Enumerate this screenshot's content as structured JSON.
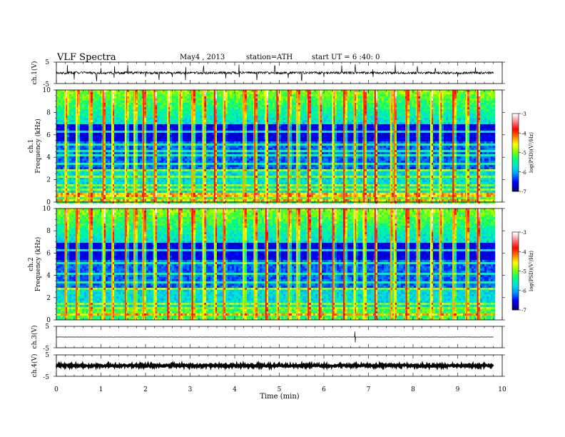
{
  "header": {
    "title": "VLF Spectra",
    "date": "May4 , 2013",
    "station": "station=ATH",
    "start": "start UT = 6 :40: 0"
  },
  "colors": {
    "spectrogram_scale": [
      "#000000",
      "#000033",
      "#00008b",
      "#0000ff",
      "#0090ff",
      "#00e0e0",
      "#00ff80",
      "#80ff00",
      "#ffff00",
      "#ff8000",
      "#ff0000",
      "#ff8080",
      "#ffffff"
    ],
    "trace": "#000000",
    "background": "#ffffff"
  },
  "chart_data": [
    {
      "type": "line",
      "panel": "ch1",
      "ylabel": "ch.1(V)",
      "ylim": [
        -5,
        5
      ],
      "ytick_labels": [
        "5",
        "-5"
      ],
      "xlim": [
        0,
        10
      ],
      "trace_extent_min": 9.8,
      "baseline": 0,
      "noise_amplitude": 0.6,
      "spike_times": [
        0.25,
        0.4,
        0.9,
        1.0,
        1.3,
        1.6,
        2.0,
        2.3,
        2.6,
        2.9,
        3.3,
        3.8,
        4.1,
        4.5,
        4.9,
        5.2,
        5.5,
        6.0,
        6.4,
        6.7,
        7.1,
        7.6,
        8.1,
        8.5,
        9.0,
        9.4
      ]
    },
    {
      "type": "heatmap",
      "panel": "ch2_spectrogram_1",
      "ylabel": "ch.1 Frequency (kHz)",
      "ylabel_lines": [
        "ch.1",
        "Frequency (kHz)"
      ],
      "ylim": [
        0,
        10
      ],
      "ytick_labels": [
        "0",
        "2",
        "4",
        "6",
        "8",
        "10"
      ],
      "xlim": [
        0,
        10
      ],
      "data_extent_min": 9.8,
      "colorbar": {
        "label": "log(PSD)(V²/Hz)",
        "range": [
          -7,
          -3
        ],
        "tick_labels": [
          "-7",
          "-6",
          "-5",
          "-4",
          "-3"
        ]
      },
      "bright_lines_khz": [
        0.3,
        0.6,
        0.85,
        1.2,
        1.6,
        2.4,
        2.9,
        3.5,
        4.2,
        4.7,
        5.2,
        6.3
      ],
      "burst_times_min": [
        0.2,
        0.45,
        0.75,
        1.05,
        1.25,
        1.55,
        1.75,
        1.95,
        2.2,
        2.5,
        2.75,
        3.05,
        3.3,
        3.55,
        3.75,
        4.2,
        4.45,
        4.7,
        4.95,
        5.2,
        5.4,
        5.65,
        5.9,
        6.2,
        6.45,
        6.68,
        6.9,
        7.15,
        7.5,
        7.58,
        7.85,
        8.1,
        8.4,
        8.6,
        8.9,
        9.2,
        9.45
      ]
    },
    {
      "type": "heatmap",
      "panel": "ch2_spectrogram_2",
      "ylabel": "ch.2 Frequency (kHz)",
      "ylabel_lines": [
        "ch.2",
        "Frequency (kHz)"
      ],
      "ylim": [
        0,
        10
      ],
      "ytick_labels": [
        "0",
        "2",
        "4",
        "6",
        "8",
        "10"
      ],
      "xlim": [
        0,
        10
      ],
      "data_extent_min": 9.8,
      "colorbar": {
        "label": "log(PSD)(V²/Hz)",
        "range": [
          -7,
          -3
        ],
        "tick_labels": [
          "-7",
          "-6",
          "-5",
          "-4",
          "-3"
        ]
      },
      "bright_lines_khz": [
        0.3,
        0.6,
        0.85,
        1.2,
        1.6,
        2.4,
        2.9,
        3.5,
        4.2,
        4.7,
        5.2,
        6.3
      ],
      "burst_times_min": [
        0.2,
        0.45,
        0.75,
        1.05,
        1.25,
        1.55,
        1.75,
        1.95,
        2.2,
        2.5,
        2.75,
        3.05,
        3.3,
        3.55,
        3.75,
        4.2,
        4.45,
        4.7,
        4.95,
        5.2,
        5.4,
        5.65,
        5.9,
        6.2,
        6.45,
        6.68,
        6.9,
        7.15,
        7.5,
        7.58,
        7.85,
        8.1,
        8.4,
        8.6,
        8.9,
        9.2,
        9.45
      ]
    },
    {
      "type": "line",
      "panel": "ch3",
      "ylabel": "ch.3(V)",
      "ylim": [
        -5,
        5
      ],
      "ytick_labels": [
        "5",
        "-5"
      ],
      "xlim": [
        0,
        10
      ],
      "trace_extent_min": 9.8,
      "baseline": 0,
      "noise_amplitude": 0.05,
      "spike_times": [
        6.7
      ]
    },
    {
      "type": "line",
      "panel": "ch4",
      "ylabel": "ch.4(V)",
      "ylim": [
        -5,
        5
      ],
      "ytick_labels": [
        "5",
        "-5"
      ],
      "xlim": [
        0,
        10
      ],
      "trace_extent_min": 9.8,
      "baseline": 0,
      "noise_amplitude": 0.5,
      "spike_times": []
    }
  ],
  "x_axis": {
    "label": "Time (min)",
    "tick_labels": [
      "0",
      "1",
      "2",
      "3",
      "4",
      "5",
      "6",
      "7",
      "8",
      "9",
      "10"
    ]
  }
}
